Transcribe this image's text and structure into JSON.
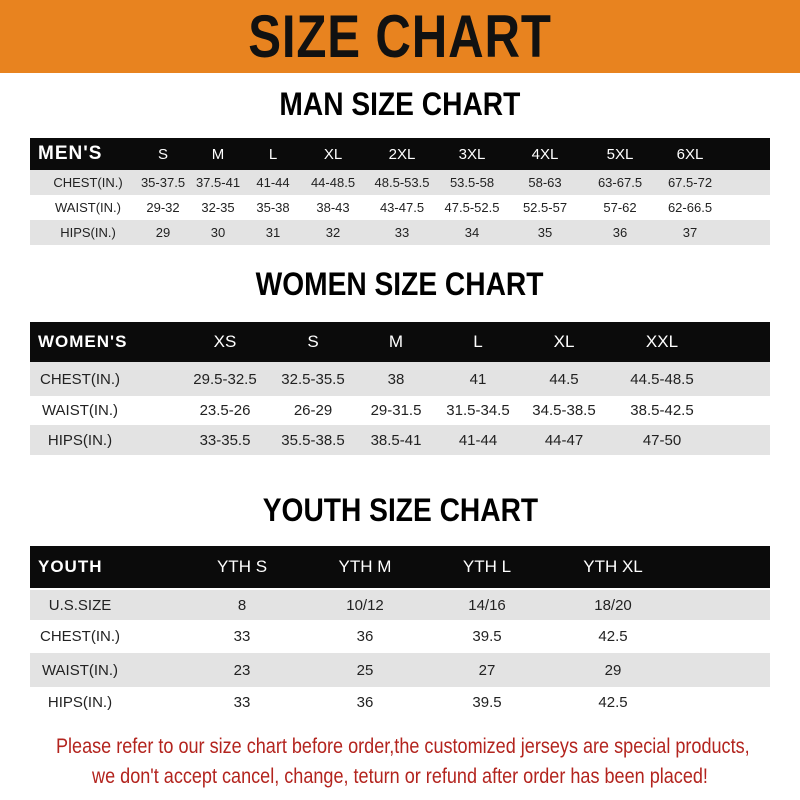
{
  "banner": "SIZE CHART",
  "men": {
    "title": "MAN SIZE CHART",
    "header": [
      "MEN'S",
      "S",
      "M",
      "L",
      "XL",
      "2XL",
      "3XL",
      "4XL",
      "5XL",
      "6XL"
    ],
    "rows": [
      [
        "CHEST(IN.)",
        "35-37.5",
        "37.5-41",
        "41-44",
        "44-48.5",
        "48.5-53.5",
        "53.5-58",
        "58-63",
        "63-67.5",
        "67.5-72"
      ],
      [
        "WAIST(IN.)",
        "29-32",
        "32-35",
        "35-38",
        "38-43",
        "43-47.5",
        "47.5-52.5",
        "52.5-57",
        "57-62",
        "62-66.5"
      ],
      [
        "HIPS(IN.)",
        "29",
        "30",
        "31",
        "32",
        "33",
        "34",
        "35",
        "36",
        "37"
      ]
    ]
  },
  "women": {
    "title": "WOMEN SIZE CHART",
    "header": [
      "WOMEN'S",
      "XS",
      "S",
      "M",
      "L",
      "XL",
      "XXL"
    ],
    "rows": [
      [
        "CHEST(IN.)",
        "29.5-32.5",
        "32.5-35.5",
        "38",
        "41",
        "44.5",
        "44.5-48.5"
      ],
      [
        "WAIST(IN.)",
        "23.5-26",
        "26-29",
        "29-31.5",
        "31.5-34.5",
        "34.5-38.5",
        "38.5-42.5"
      ],
      [
        "HIPS(IN.)",
        "33-35.5",
        "35.5-38.5",
        "38.5-41",
        "41-44",
        "44-47",
        "47-50"
      ]
    ]
  },
  "youth": {
    "title": "YOUTH SIZE CHART",
    "header": [
      "YOUTH",
      "YTH S",
      "YTH M",
      "YTH L",
      "YTH XL"
    ],
    "rows": [
      [
        "U.S.SIZE",
        "8",
        "10/12",
        "14/16",
        "18/20"
      ],
      [
        "CHEST(IN.)",
        "33",
        "36",
        "39.5",
        "42.5"
      ],
      [
        "WAIST(IN.)",
        "23",
        "25",
        "27",
        "29"
      ],
      [
        "HIPS(IN.)",
        "33",
        "36",
        "39.5",
        "42.5"
      ]
    ]
  },
  "footer": {
    "line1": "Please refer to our size chart before order,the customized jerseys are special products,",
    "line2": "we don't accept cancel, change, teturn or refund after order has been placed!"
  },
  "colors": {
    "banner": "#e8831f",
    "header_row": "#0b0b0b",
    "stripe": "#e3e3e3",
    "notice": "#b3241e"
  }
}
